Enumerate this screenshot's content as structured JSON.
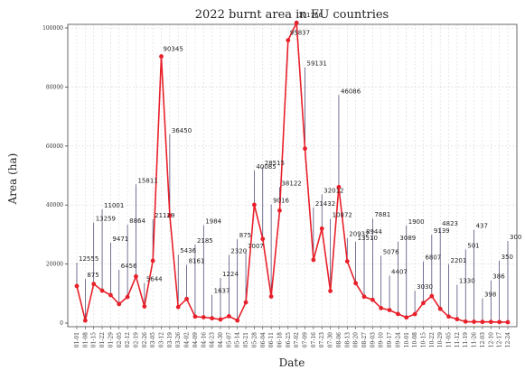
{
  "chart_data": {
    "type": "line",
    "title": "2022 burnt area in EU countries",
    "xlabel": "Date",
    "ylabel": "Area (ha)",
    "ylim": [
      0,
      100000
    ],
    "y_ticks": [
      0,
      20000,
      40000,
      60000,
      80000,
      100000
    ],
    "grid": true,
    "line_color": "#e8202a",
    "marker_color": "#e8202a",
    "leader_color": "#3b3b6b",
    "x": [
      "01-01",
      "01-08",
      "01-15",
      "01-22",
      "01-29",
      "02-05",
      "02-12",
      "02-19",
      "02-26",
      "03-05",
      "03-12",
      "03-19",
      "03-26",
      "04-02",
      "04-09",
      "04-16",
      "04-23",
      "04-30",
      "05-07",
      "05-14",
      "05-21",
      "05-28",
      "06-04",
      "06-11",
      "06-18",
      "06-25",
      "07-02",
      "07-09",
      "07-16",
      "07-23",
      "07-30",
      "08-06",
      "08-13",
      "08-20",
      "08-27",
      "09-03",
      "09-10",
      "09-17",
      "09-24",
      "10-01",
      "10-08",
      "10-15",
      "10-22",
      "10-29",
      "11-05",
      "11-12",
      "11-19",
      "11-26",
      "12-03",
      "12-10",
      "12-17",
      "12-24"
    ],
    "values": [
      12555,
      875,
      13259,
      11001,
      9471,
      6456,
      8864,
      15811,
      5644,
      21129,
      90345,
      36450,
      5436,
      8161,
      2185,
      1984,
      1637,
      1224,
      2320,
      875,
      7007,
      40085,
      28515,
      9016,
      38122,
      95837,
      101766,
      59131,
      21432,
      32012,
      10872,
      46086,
      20932,
      13510,
      8944,
      7881,
      5076,
      4407,
      3089,
      1900,
      3030,
      6807,
      9139,
      4823,
      2201,
      1330,
      501,
      437,
      398,
      386,
      350,
      300
    ],
    "labels": [
      "12555",
      "875",
      "13259",
      "11001",
      "9471",
      "6456",
      "8864",
      "15811",
      "5644",
      "21129",
      "90345",
      "36450",
      "5436",
      "8161",
      "2185",
      "1984",
      "1637",
      "1224",
      "2320",
      "875",
      "7007",
      "40085",
      "28515",
      "9016",
      "38122",
      "95837",
      "101766",
      "59131",
      "21432",
      "32012",
      "10872",
      "46086",
      "20932",
      "13510",
      "8944",
      "7881",
      "5076",
      "4407",
      "3089",
      "1900",
      "3030",
      "6807",
      "9139",
      "4823",
      "2201",
      "1330",
      "501",
      "437",
      "398",
      "386",
      "350",
      "300"
    ]
  }
}
